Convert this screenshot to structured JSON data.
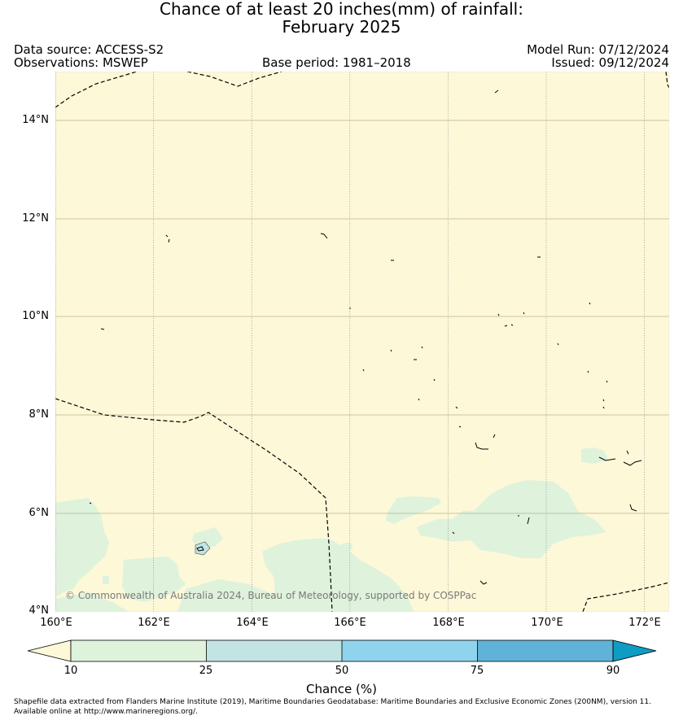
{
  "title": {
    "line1": "Chance of at least 20 inches(mm) of rainfall:",
    "line2": "February 2025"
  },
  "header": {
    "data_source": "Data source: ACCESS-S2",
    "observations": "Observations: MSWEP",
    "base_period": "Base period: 1981–2018",
    "model_run": "Model Run: 07/12/2024",
    "issued": "Issued: 09/12/2024"
  },
  "map": {
    "copyright": "© Commonwealth of Australia 2024, Bureau of Meteorology, supported by COSPPac",
    "background_color": "#fdf8d8",
    "land_sea_color": "#dff2dc",
    "lon_ticks": [
      "160°E",
      "162°E",
      "164°E",
      "166°E",
      "168°E",
      "170°E",
      "172°E"
    ],
    "lat_ticks": [
      "4°N",
      "6°N",
      "8°N",
      "10°N",
      "12°N",
      "14°N"
    ]
  },
  "colorbar": {
    "ticks": [
      "10",
      "25",
      "50",
      "75",
      "90"
    ],
    "label": "Chance (%)",
    "colors": [
      "#fdf8d8",
      "#dff2dc",
      "#c2e4e2",
      "#8fd3ec",
      "#5fb3d8",
      "#0f9cc4"
    ]
  },
  "footer": {
    "line1": "Shapefile data extracted from Flanders Marine Institute (2019), Maritime Boundaries Geodatabase: Maritime Boundaries and Exclusive Economic Zones (200NM), version 11.",
    "line2": "Available online at http://www.marineregions.org/."
  }
}
